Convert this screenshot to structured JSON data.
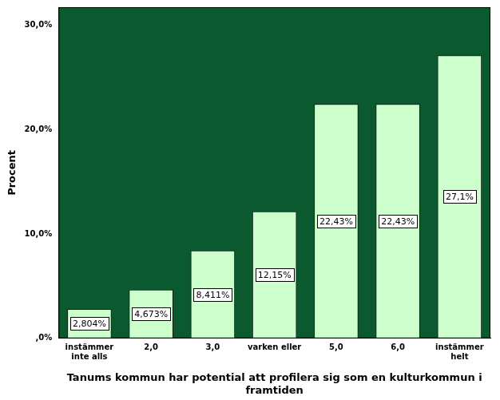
{
  "chart_data": {
    "type": "bar",
    "x_label": "Tanums kommun har potential att profilera sig som en kulturkommun i framtiden",
    "y_label": "Procent",
    "categories": [
      "instämmer inte alls",
      "2,0",
      "3,0",
      "varken eller",
      "5,0",
      "6,0",
      "instämmer helt"
    ],
    "values": [
      2.804,
      4.673,
      8.411,
      12.15,
      22.43,
      22.43,
      27.1
    ],
    "value_labels": [
      "2,804%",
      "4,673%",
      "8,411%",
      "12,15%",
      "22,43%",
      "22,43%",
      "27,1%"
    ],
    "data_labels": true,
    "color": "#ccffcc",
    "ylim": [
      0,
      31.7
    ],
    "yticks": [
      {
        "value": 0,
        "label": ",0%"
      },
      {
        "value": 10,
        "label": "10,0%"
      },
      {
        "value": 20,
        "label": "20,0%"
      },
      {
        "value": 30,
        "label": "30,0%"
      }
    ],
    "grid": false,
    "legend": false
  }
}
